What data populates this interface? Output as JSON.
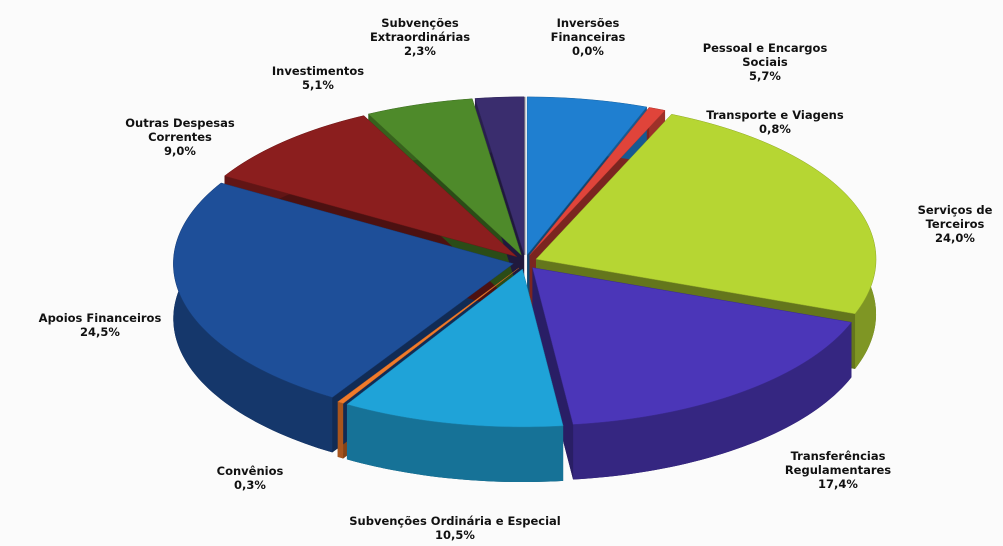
{
  "chart_data": {
    "type": "pie",
    "categories": [
      "Pessoal e Encargos Sociais",
      "Transporte e Viagens",
      "Serviços de Terceiros",
      "Transferências Regulamentares",
      "Subvenções Ordinária e Especial",
      "Convênios",
      "Apoios Financeiros",
      "Outras Despesas Correntes",
      "Investimentos",
      "Subvenções Extraordinárias",
      "Inversões Financeiras"
    ],
    "values": [
      5.7,
      0.8,
      24.0,
      17.4,
      10.5,
      0.3,
      24.5,
      9.0,
      5.1,
      2.3,
      0.0
    ],
    "value_labels": [
      "5,7%",
      "0,8%",
      "24,0%",
      "17,4%",
      "10,5%",
      "0,3%",
      "24,5%",
      "9,0%",
      "5,1%",
      "2,3%",
      "0,0%"
    ],
    "colors": [
      "#1f7fd0",
      "#e0443a",
      "#b6d633",
      "#4b36b8",
      "#1fa3d8",
      "#f07a2a",
      "#1e4f99",
      "#8b1e1e",
      "#4e8a2a",
      "#3a2d6e",
      "#888888"
    ]
  }
}
